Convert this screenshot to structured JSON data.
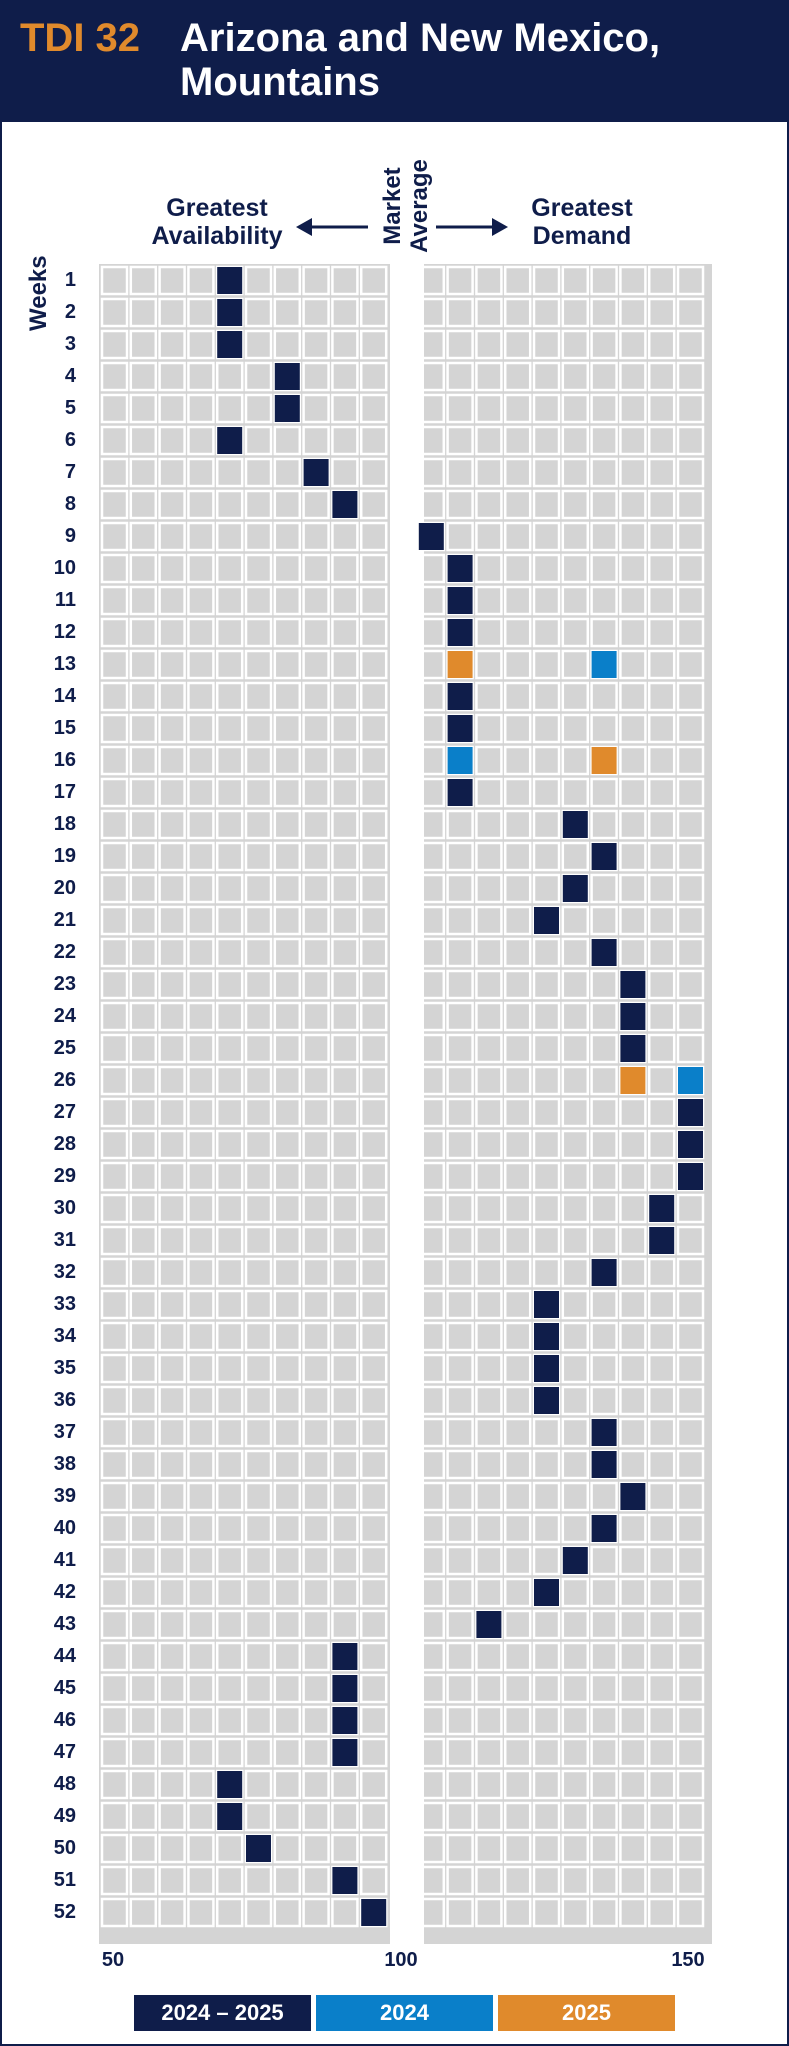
{
  "header": {
    "code": "TDI 32",
    "title_line1": "Arizona and New Mexico,",
    "title_line2": "Mountains"
  },
  "annotations": {
    "left_line1": "Greatest",
    "left_line2": "Availability",
    "market_line1": "Market",
    "market_line2": "Average",
    "right_line1": "Greatest",
    "right_line2": "Demand",
    "weeks_label": "Weeks"
  },
  "colors": {
    "navy": "#0f1d4a",
    "blue": "#0a7fc9",
    "orange": "#e08a2c",
    "cell": "#d4d4d4",
    "cell_stroke": "#ffffff"
  },
  "chart_data": {
    "type": "heatmap",
    "xlim": [
      50,
      150
    ],
    "x_ticks": [
      "50",
      "100",
      "150"
    ],
    "weeks": [
      "1",
      "2",
      "3",
      "4",
      "5",
      "6",
      "7",
      "8",
      "9",
      "10",
      "11",
      "12",
      "13",
      "14",
      "15",
      "16",
      "17",
      "18",
      "19",
      "20",
      "21",
      "22",
      "23",
      "24",
      "25",
      "26",
      "27",
      "28",
      "29",
      "30",
      "31",
      "32",
      "33",
      "34",
      "35",
      "36",
      "37",
      "38",
      "39",
      "40",
      "41",
      "42",
      "43",
      "44",
      "45",
      "46",
      "47",
      "48",
      "49",
      "50",
      "51",
      "52"
    ],
    "legend": [
      {
        "label": "2024 – 2025",
        "color": "#0f1d4a"
      },
      {
        "label": "2024",
        "color": "#0a7fc9"
      },
      {
        "label": "2025",
        "color": "#e08a2c"
      }
    ],
    "series": [
      {
        "name": "2024 – 2025",
        "color": "#0f1d4a",
        "values": [
          71,
          71,
          71,
          81,
          81,
          71,
          86,
          91,
          106,
          111,
          111,
          111,
          null,
          111,
          111,
          null,
          111,
          131,
          136,
          131,
          126,
          136,
          141,
          141,
          141,
          null,
          151,
          151,
          151,
          146,
          146,
          136,
          126,
          126,
          126,
          126,
          136,
          136,
          141,
          136,
          131,
          126,
          116,
          91,
          91,
          91,
          91,
          71,
          71,
          76,
          91,
          96
        ]
      },
      {
        "name": "2024",
        "color": "#0a7fc9",
        "values": [
          null,
          null,
          null,
          null,
          null,
          null,
          null,
          null,
          null,
          null,
          null,
          null,
          136,
          null,
          null,
          111,
          null,
          null,
          null,
          null,
          null,
          null,
          null,
          null,
          null,
          151,
          null,
          null,
          null,
          null,
          null,
          null,
          null,
          null,
          null,
          null,
          null,
          null,
          null,
          null,
          null,
          null,
          null,
          null,
          null,
          null,
          null,
          null,
          null,
          null,
          null,
          null
        ]
      },
      {
        "name": "2025",
        "color": "#e08a2c",
        "values": [
          null,
          null,
          null,
          null,
          null,
          null,
          null,
          null,
          null,
          null,
          null,
          null,
          111,
          null,
          null,
          136,
          null,
          null,
          null,
          null,
          null,
          null,
          null,
          null,
          null,
          141,
          null,
          null,
          null,
          null,
          null,
          null,
          null,
          null,
          null,
          null,
          null,
          null,
          null,
          null,
          null,
          null,
          null,
          null,
          null,
          null,
          null,
          null,
          null,
          null,
          null,
          null
        ]
      }
    ]
  }
}
